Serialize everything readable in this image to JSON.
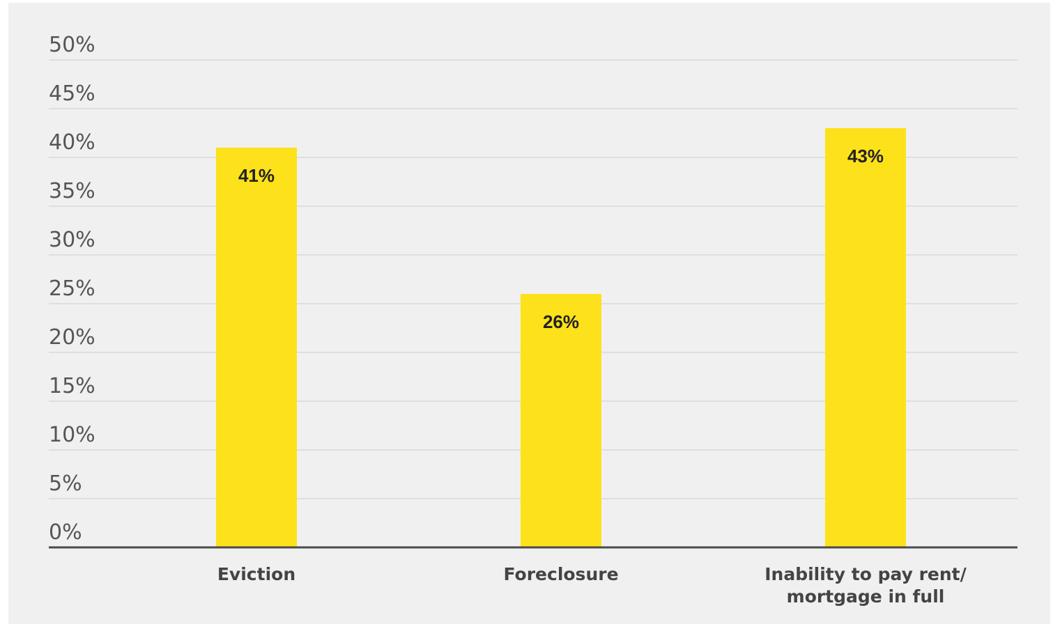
{
  "chart_data": {
    "type": "bar",
    "categories": [
      "Eviction",
      "Foreclosure",
      "Inability to pay rent/ mortgage in full"
    ],
    "category_lines": [
      [
        "Eviction"
      ],
      [
        "Foreclosure"
      ],
      [
        "Inability to pay rent/",
        "mortgage in full"
      ]
    ],
    "values": [
      41,
      26,
      43
    ],
    "data_labels": [
      "41%",
      "26%",
      "43%"
    ],
    "y_ticks": [
      0,
      5,
      10,
      15,
      20,
      25,
      30,
      35,
      40,
      45,
      50
    ],
    "y_tick_labels": [
      "0%",
      "5%",
      "10%",
      "15%",
      "20%",
      "25%",
      "30%",
      "35%",
      "40%",
      "45%",
      "50%"
    ],
    "ylim": [
      0,
      50
    ],
    "title": "",
    "xlabel": "",
    "ylabel": "",
    "grid": true,
    "legend": "none",
    "colors": {
      "bar": "#fde11b",
      "background": "#f1f0f0",
      "grid": "#e0dfdf",
      "axis": "#4a4a4a"
    }
  }
}
